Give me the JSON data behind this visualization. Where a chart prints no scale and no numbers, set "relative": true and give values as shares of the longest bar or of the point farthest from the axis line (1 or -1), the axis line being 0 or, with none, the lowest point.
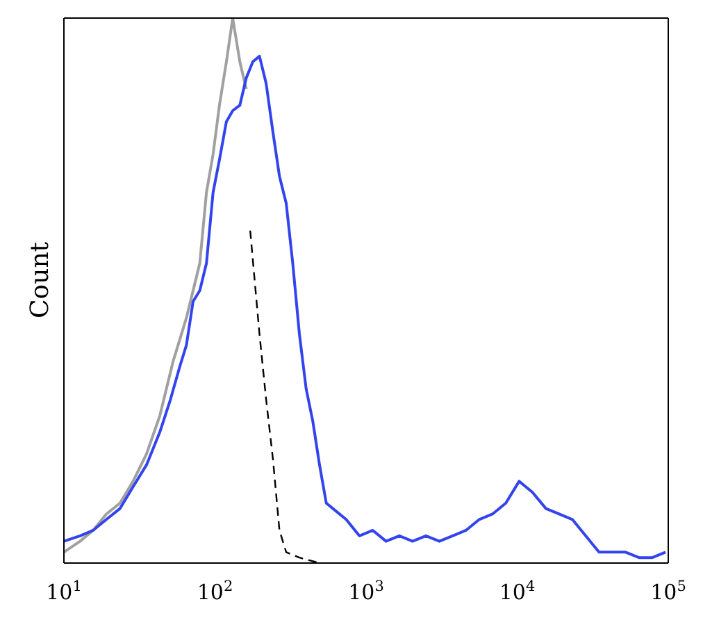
{
  "chart_data": {
    "type": "line",
    "ylabel": "Count",
    "relative": true,
    "log": "x",
    "xlim": [
      10,
      100000
    ],
    "xticks": [
      {
        "value": 10,
        "label": "10$^{1}$"
      },
      {
        "value": 100,
        "label": "10$^{2}$"
      },
      {
        "value": 1000,
        "label": "10$^{3}$"
      },
      {
        "value": 10000,
        "label": "10$^{4}$"
      },
      {
        "value": 100000,
        "label": "10$^{5}$"
      }
    ],
    "grid": false,
    "legend": false,
    "marker": "none",
    "series": [
      {
        "color": "#a0a0a0",
        "x": [
          10,
          12.8,
          15.6,
          19.1,
          23.5,
          28.7,
          35.2,
          43.1,
          52.8,
          64.7,
          79.3,
          87.8,
          97.1,
          107,
          119,
          131,
          146,
          161
        ],
        "values": [
          0.02,
          0.04,
          0.06,
          0.09,
          0.11,
          0.15,
          0.2,
          0.27,
          0.37,
          0.45,
          0.55,
          0.68,
          0.75,
          0.84,
          0.92,
          1,
          0.92,
          0.87
        ]
      },
      {
        "color": "#000000",
        "line_style": "dashed",
        "x": [
          171,
          197,
          218,
          242,
          267,
          296,
          362,
          492
        ],
        "values": [
          0.61,
          0.42,
          0.3,
          0.19,
          0.06,
          0.02,
          0.01,
          0
        ]
      },
      {
        "color": "#3344ee",
        "x": [
          10,
          12.8,
          15.6,
          19.1,
          23.5,
          28.7,
          35.2,
          43.1,
          50.7,
          58.4,
          64.7,
          71.6,
          79.3,
          87.8,
          97.1,
          107,
          119,
          131,
          146,
          161,
          178,
          197,
          218,
          242,
          267,
          296,
          327,
          362,
          401,
          444,
          492,
          545,
          603,
          738,
          903,
          1107,
          1355,
          1660,
          2032,
          2489,
          3055,
          3741,
          4581,
          5610,
          6871,
          8414,
          10300,
          11400,
          12600,
          15500,
          18950,
          23200,
          28400,
          34800,
          42700,
          52200,
          64000,
          78400,
          95900
        ],
        "values": [
          0.04,
          0.05,
          0.06,
          0.08,
          0.1,
          0.14,
          0.18,
          0.24,
          0.3,
          0.36,
          0.4,
          0.48,
          0.5,
          0.55,
          0.68,
          0.74,
          0.81,
          0.83,
          0.84,
          0.89,
          0.92,
          0.93,
          0.88,
          0.79,
          0.71,
          0.66,
          0.55,
          0.42,
          0.32,
          0.26,
          0.18,
          0.11,
          0.1,
          0.08,
          0.05,
          0.06,
          0.04,
          0.05,
          0.04,
          0.05,
          0.04,
          0.05,
          0.06,
          0.08,
          0.09,
          0.11,
          0.15,
          0.14,
          0.13,
          0.1,
          0.09,
          0.08,
          0.05,
          0.02,
          0.02,
          0.02,
          0.01,
          0.01,
          0.02
        ]
      }
    ]
  }
}
